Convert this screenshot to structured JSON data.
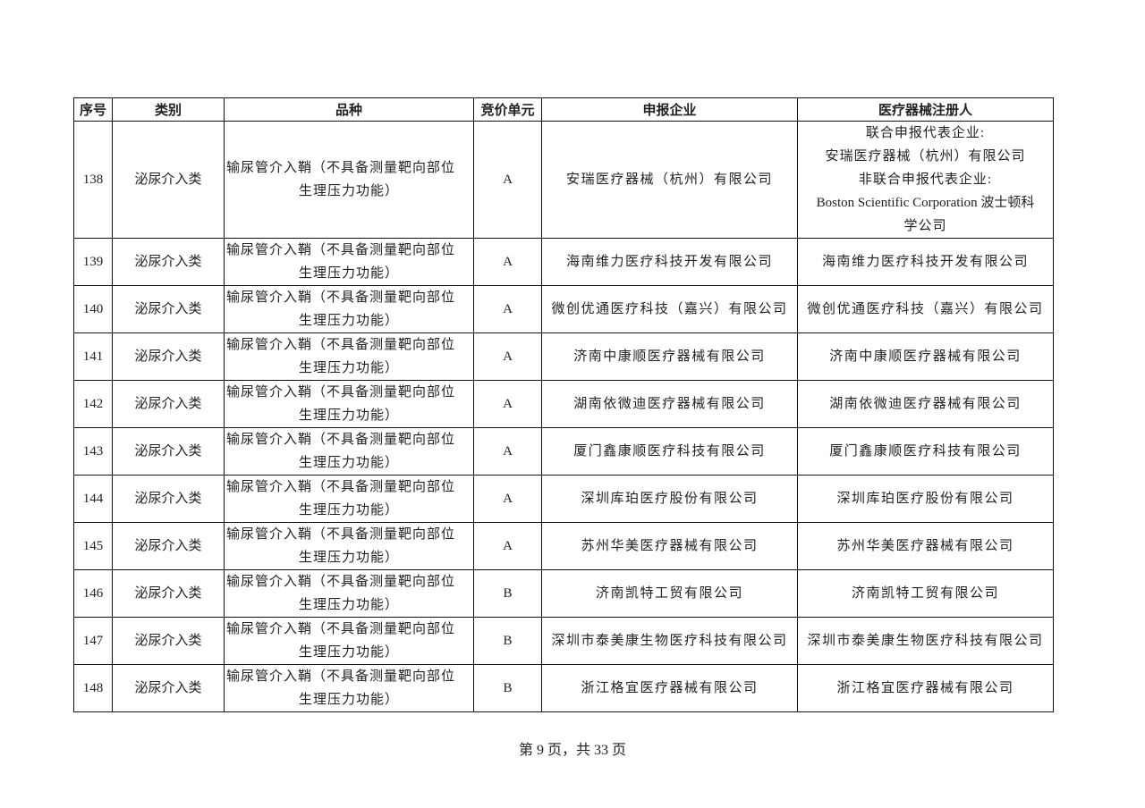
{
  "table": {
    "headers": [
      "序号",
      "类别",
      "品种",
      "竞价单元",
      "申报企业",
      "医疗器械注册人"
    ],
    "first_row": {
      "no": "138",
      "category": "泌尿介入类",
      "item_line1": "输尿管介入鞘（不具备测量靶向部位",
      "item_line2": "生理压力功能）",
      "unit": "A",
      "company": "安瑞医疗器械（杭州）有限公司",
      "registrant_lines": [
        "联合申报代表企业:",
        "安瑞医疗器械（杭州）有限公司",
        "非联合申报代表企业:",
        "Boston Scientific Corporation 波士顿科",
        "学公司"
      ]
    },
    "rows": [
      {
        "no": "139",
        "category": "泌尿介入类",
        "item_line1": "输尿管介入鞘（不具备测量靶向部位",
        "item_line2": "生理压力功能）",
        "unit": "A",
        "company": "海南维力医疗科技开发有限公司",
        "registrant": "海南维力医疗科技开发有限公司"
      },
      {
        "no": "140",
        "category": "泌尿介入类",
        "item_line1": "输尿管介入鞘（不具备测量靶向部位",
        "item_line2": "生理压力功能）",
        "unit": "A",
        "company": "微创优通医疗科技（嘉兴）有限公司",
        "registrant": "微创优通医疗科技（嘉兴）有限公司"
      },
      {
        "no": "141",
        "category": "泌尿介入类",
        "item_line1": "输尿管介入鞘（不具备测量靶向部位",
        "item_line2": "生理压力功能）",
        "unit": "A",
        "company": "济南中康顺医疗器械有限公司",
        "registrant": "济南中康顺医疗器械有限公司"
      },
      {
        "no": "142",
        "category": "泌尿介入类",
        "item_line1": "输尿管介入鞘（不具备测量靶向部位",
        "item_line2": "生理压力功能）",
        "unit": "A",
        "company": "湖南依微迪医疗器械有限公司",
        "registrant": "湖南依微迪医疗器械有限公司"
      },
      {
        "no": "143",
        "category": "泌尿介入类",
        "item_line1": "输尿管介入鞘（不具备测量靶向部位",
        "item_line2": "生理压力功能）",
        "unit": "A",
        "company": "厦门鑫康顺医疗科技有限公司",
        "registrant": "厦门鑫康顺医疗科技有限公司"
      },
      {
        "no": "144",
        "category": "泌尿介入类",
        "item_line1": "输尿管介入鞘（不具备测量靶向部位",
        "item_line2": "生理压力功能）",
        "unit": "A",
        "company": "深圳库珀医疗股份有限公司",
        "registrant": "深圳库珀医疗股份有限公司"
      },
      {
        "no": "145",
        "category": "泌尿介入类",
        "item_line1": "输尿管介入鞘（不具备测量靶向部位",
        "item_line2": "生理压力功能）",
        "unit": "A",
        "company": "苏州华美医疗器械有限公司",
        "registrant": "苏州华美医疗器械有限公司"
      },
      {
        "no": "146",
        "category": "泌尿介入类",
        "item_line1": "输尿管介入鞘（不具备测量靶向部位",
        "item_line2": "生理压力功能）",
        "unit": "B",
        "company": "济南凯特工贸有限公司",
        "registrant": "济南凯特工贸有限公司"
      },
      {
        "no": "147",
        "category": "泌尿介入类",
        "item_line1": "输尿管介入鞘（不具备测量靶向部位",
        "item_line2": "生理压力功能）",
        "unit": "B",
        "company": "深圳市泰美康生物医疗科技有限公司",
        "registrant": "深圳市泰美康生物医疗科技有限公司"
      },
      {
        "no": "148",
        "category": "泌尿介入类",
        "item_line1": "输尿管介入鞘（不具备测量靶向部位",
        "item_line2": "生理压力功能）",
        "unit": "B",
        "company": "浙江格宜医疗器械有限公司",
        "registrant": "浙江格宜医疗器械有限公司"
      }
    ]
  },
  "footer": {
    "page_text": "第 9 页，共 33 页"
  }
}
